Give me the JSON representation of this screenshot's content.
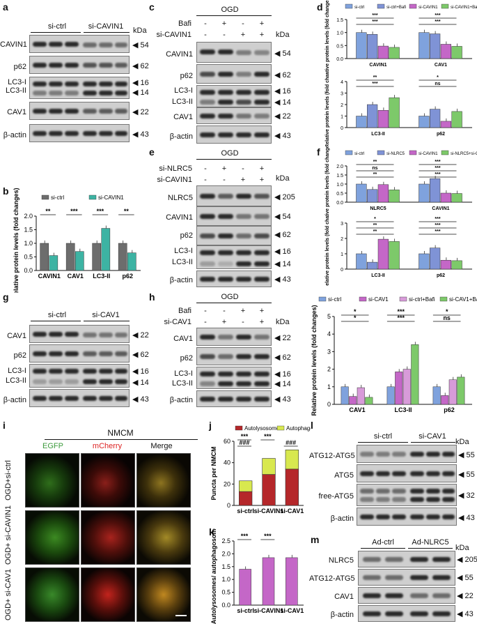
{
  "panels": {
    "a": "a",
    "b": "b",
    "c": "c",
    "d": "d",
    "e": "e",
    "f": "f",
    "g": "g",
    "h": "h",
    "i": "i",
    "j": "j",
    "k": "k",
    "l": "l",
    "m": "m"
  },
  "kda": "kDa",
  "blot_a": {
    "groups": [
      "si-ctrl",
      "si-CAVIN1"
    ],
    "rows": [
      "CAVIN1",
      "p62",
      "LC3-I",
      "LC3-II",
      "CAV1",
      "β-actin"
    ],
    "mw": [
      "54",
      "62",
      "16",
      "14",
      "22",
      "43"
    ]
  },
  "blot_c": {
    "header": "OGD",
    "cond_rows": [
      "Bafi",
      "si-CAVIN1"
    ],
    "bafi": [
      "-",
      "+",
      "-",
      "+"
    ],
    "sicavin1": [
      "-",
      "-",
      "+",
      "+"
    ],
    "rows": [
      "CAVIN1",
      "p62",
      "LC3-I",
      "LC3-II",
      "CAV1",
      "β-actin"
    ],
    "mw": [
      "54",
      "62",
      "16",
      "14",
      "22",
      "43"
    ]
  },
  "blot_e": {
    "header": "OGD",
    "cond_rows": [
      "si-NLRC5",
      "si-CAVIN1"
    ],
    "sinlrc5": [
      "-",
      "+",
      "-",
      "+"
    ],
    "sicavin1": [
      "-",
      "-",
      "+",
      "+"
    ],
    "rows": [
      "NLRC5",
      "CAVIN1",
      "p62",
      "LC3-I",
      "LC3-II",
      "β-actin"
    ],
    "mw": [
      "205",
      "54",
      "62",
      "16",
      "14",
      "43"
    ]
  },
  "blot_g": {
    "groups": [
      "si-ctrl",
      "si-CAV1"
    ],
    "rows": [
      "CAV1",
      "p62",
      "LC3-I",
      "LC3-II",
      "β-actin"
    ],
    "mw": [
      "22",
      "62",
      "16",
      "14",
      "43"
    ]
  },
  "blot_h": {
    "header": "OGD",
    "cond_rows": [
      "Bafi",
      "si-CAV1"
    ],
    "bafi": [
      "-",
      "-",
      "+",
      "+"
    ],
    "sicav1": [
      "-",
      "+",
      "-",
      "+"
    ],
    "rows": [
      "CAV1",
      "p62",
      "LC3-I",
      "LC3-II",
      "β-actin"
    ],
    "mw": [
      "22",
      "62",
      "16",
      "14",
      "43"
    ]
  },
  "blot_l": {
    "groups": [
      "si-ctrl",
      "si-CAV1"
    ],
    "rows": [
      "ATG12-ATG5",
      "ATG5",
      "free-ATG5",
      "β-actin"
    ],
    "mw": [
      "55",
      "55",
      "32",
      "43"
    ]
  },
  "blot_m": {
    "groups": [
      "Ad-ctrl",
      "Ad-NLRC5"
    ],
    "rows": [
      "NLRC5",
      "ATG12-ATG5",
      "CAV1",
      "β-actin"
    ],
    "mw": [
      "205",
      "55",
      "22",
      "43"
    ]
  },
  "micro_i": {
    "title": "NMCM",
    "cols": [
      "EGFP",
      "mCherry",
      "Merge"
    ],
    "rows": [
      "OGD+si-ctrl",
      "OGD+ si-CAVIN1",
      "OGD+ si-CAV1"
    ]
  },
  "colors": {
    "grey": "#6d6d6d",
    "teal": "#3db3a3",
    "blue": "#7f93d6",
    "purple": "#c467c7",
    "green": "#7dc96a",
    "light_blue": "#7fa2dd",
    "pink": "#d89bd9",
    "red": "#b5272a",
    "yellow": "#d8e84f"
  },
  "chart_data": [
    {
      "id": "b",
      "type": "bar",
      "title": "",
      "ylabel": "Relative protein levels (fold changes)",
      "categories": [
        "CAVIN1",
        "CAV1",
        "LC3-II",
        "p62"
      ],
      "series": [
        {
          "name": "si-ctrl",
          "values": [
            1.0,
            1.0,
            1.0,
            1.0
          ]
        },
        {
          "name": "si-CAVIN1",
          "values": [
            0.55,
            0.7,
            1.55,
            0.65
          ]
        }
      ],
      "ylim": [
        0,
        2.0
      ],
      "yticks": [
        "0.0",
        "0.5",
        "1.0",
        "1.5",
        "2.0"
      ],
      "sig": [
        "**",
        "***",
        "***",
        "**"
      ],
      "legend": "top"
    },
    {
      "id": "d1",
      "type": "bar",
      "ylabel": "Relative protein levels (fold changes)",
      "categories": [
        "CAVIN1",
        "CAV1"
      ],
      "series": [
        {
          "name": "si-ctrl",
          "values": [
            1.0,
            1.0
          ]
        },
        {
          "name": "si-ctrl+Bafi",
          "values": [
            0.93,
            0.95
          ]
        },
        {
          "name": "si-CAVIN1",
          "values": [
            0.48,
            0.55
          ]
        },
        {
          "name": "si-CAVIN1+Bafi",
          "values": [
            0.43,
            0.47
          ]
        }
      ],
      "ylim": [
        0,
        1.5
      ],
      "yticks": [
        "0.0",
        "0.5",
        "1.0",
        "1.5"
      ],
      "sig": [
        "***",
        "***",
        "***",
        "***"
      ],
      "legend": "top"
    },
    {
      "id": "d2",
      "type": "bar",
      "ylabel": "Relative protein levels (fold changes)",
      "categories": [
        "LC3-II",
        "p62"
      ],
      "series": [
        {
          "name": "si-ctrl",
          "values": [
            1.0,
            1.0
          ]
        },
        {
          "name": "si-ctrl+Bafi",
          "values": [
            2.0,
            1.6
          ]
        },
        {
          "name": "si-CAVIN1",
          "values": [
            1.5,
            0.55
          ]
        },
        {
          "name": "si-CAVIN1+Bafi",
          "values": [
            2.6,
            1.4
          ]
        }
      ],
      "ylim": [
        0,
        4
      ],
      "yticks": [
        "0",
        "1",
        "2",
        "3",
        "4"
      ],
      "sig": [
        "**",
        "***",
        "*",
        "ns"
      ]
    },
    {
      "id": "f1",
      "type": "bar",
      "ylabel": "Relative protein levels (fold changes)",
      "categories": [
        "NLRC5",
        "CAVIN1"
      ],
      "series": [
        {
          "name": "si-ctrl",
          "values": [
            1.0,
            1.0
          ]
        },
        {
          "name": "si-NLRC5",
          "values": [
            0.7,
            1.3
          ]
        },
        {
          "name": "si-CAVIN1",
          "values": [
            0.97,
            0.5
          ]
        },
        {
          "name": "si-NLRC5+si-CAVIN1",
          "values": [
            0.68,
            0.48
          ]
        }
      ],
      "ylim": [
        0,
        2.0
      ],
      "yticks": [
        "0.0",
        "0.5",
        "1.0",
        "1.5",
        "2.0"
      ],
      "sig": [
        "**",
        "ns",
        "**",
        "***",
        "***",
        "***"
      ],
      "legend": "top"
    },
    {
      "id": "f2",
      "type": "bar",
      "ylabel": "Relative protein levels (fold changes)",
      "categories": [
        "LC3-II",
        "p62"
      ],
      "series": [
        {
          "name": "si-ctrl",
          "values": [
            1.0,
            1.0
          ]
        },
        {
          "name": "si-NLRC5",
          "values": [
            0.45,
            1.38
          ]
        },
        {
          "name": "si-CAVIN1",
          "values": [
            1.95,
            0.58
          ]
        },
        {
          "name": "si-NLRC5+si-CAVIN1",
          "values": [
            1.8,
            0.55
          ]
        }
      ],
      "ylim": [
        0,
        3
      ],
      "yticks": [
        "0",
        "1",
        "2",
        "3"
      ],
      "sig": [
        "*",
        "**",
        "**",
        "***",
        "***",
        "***"
      ]
    },
    {
      "id": "h",
      "type": "bar",
      "ylabel": "Relative protein levels (fold changes)",
      "categories": [
        "CAV1",
        "LC3-II",
        "p62"
      ],
      "series": [
        {
          "name": "si-ctrl",
          "values": [
            1.0,
            1.0,
            1.0
          ]
        },
        {
          "name": "si-CAV1",
          "values": [
            0.45,
            1.85,
            0.5
          ]
        },
        {
          "name": "si-ctrl+Bafi",
          "values": [
            0.95,
            2.0,
            1.4
          ]
        },
        {
          "name": "si-CAV1+Bafi",
          "values": [
            0.4,
            3.4,
            1.55
          ]
        }
      ],
      "ylim": [
        0,
        5
      ],
      "yticks": [
        "0",
        "1",
        "2",
        "3",
        "4",
        "5"
      ],
      "sig": [
        "*",
        "*",
        "***",
        "***",
        "*",
        "ns"
      ],
      "legend": "top"
    },
    {
      "id": "j",
      "type": "bar",
      "stacked": true,
      "ylabel": "Puncta per NMCM",
      "categories": [
        "si-ctrl",
        "si-CAVIN1",
        "si-CAV1"
      ],
      "series": [
        {
          "name": "Autolysosomes",
          "values": [
            13,
            29,
            34
          ]
        },
        {
          "name": "Autophagosomes",
          "values": [
            10,
            15,
            18
          ]
        }
      ],
      "ylim": [
        0,
        60
      ],
      "yticks": [
        "0",
        "20",
        "40",
        "60"
      ],
      "sig": [
        "***",
        "###",
        "***",
        "###"
      ],
      "legend": "top"
    },
    {
      "id": "k",
      "type": "bar",
      "ylabel": "Autolysosomes/ autophagosomes",
      "categories": [
        "si-ctrl",
        "si-CAVIN1",
        "si-CAV1"
      ],
      "values": [
        1.4,
        1.85,
        1.85
      ],
      "ylim": [
        0,
        2.5
      ],
      "yticks": [
        "0.0",
        "0.5",
        "1.0",
        "1.5",
        "2.0",
        "2.5"
      ],
      "sig": [
        "***",
        "***"
      ]
    }
  ]
}
